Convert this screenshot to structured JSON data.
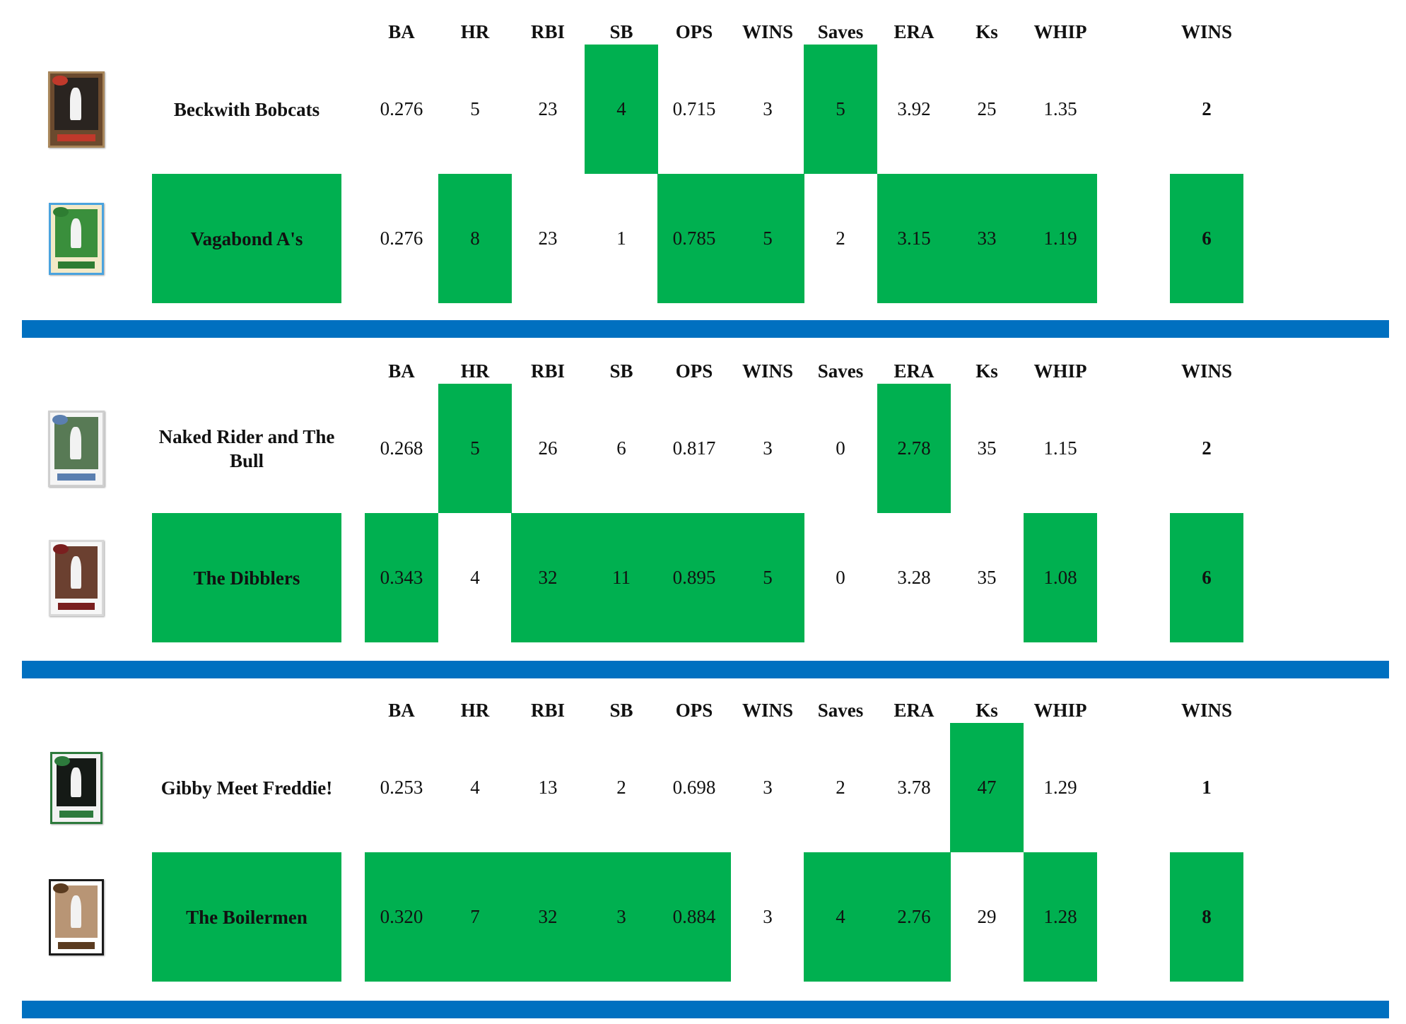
{
  "headers": [
    "BA",
    "HR",
    "RBI",
    "SB",
    "OPS",
    "WINS",
    "Saves",
    "ERA",
    "Ks",
    "WHIP",
    "WINS"
  ],
  "colors": {
    "win": "#00b050",
    "divider": "#0070c0"
  },
  "matchups": [
    {
      "teams": [
        {
          "name": "Beckwith Bobcats",
          "logo": "baseball-card-icon",
          "stats": [
            "0.276",
            "5",
            "23",
            "4",
            "0.715",
            "3",
            "5",
            "3.92",
            "25",
            "1.35"
          ],
          "wins": "2"
        },
        {
          "name": "Vagabond A's",
          "logo": "baseball-card-icon",
          "stats": [
            "0.276",
            "8",
            "23",
            "1",
            "0.785",
            "5",
            "2",
            "3.15",
            "33",
            "1.19"
          ],
          "wins": "6"
        }
      ]
    },
    {
      "teams": [
        {
          "name": "Naked Rider and The Bull",
          "logo": "baseball-card-icon",
          "stats": [
            "0.268",
            "5",
            "26",
            "6",
            "0.817",
            "3",
            "0",
            "2.78",
            "35",
            "1.15"
          ],
          "wins": "2"
        },
        {
          "name": "The Dibblers",
          "logo": "baseball-card-icon",
          "stats": [
            "0.343",
            "4",
            "32",
            "11",
            "0.895",
            "5",
            "0",
            "3.28",
            "35",
            "1.08"
          ],
          "wins": "6"
        }
      ]
    },
    {
      "teams": [
        {
          "name": "Gibby Meet Freddie!",
          "logo": "baseball-card-icon",
          "stats": [
            "0.253",
            "4",
            "13",
            "2",
            "0.698",
            "3",
            "2",
            "3.78",
            "47",
            "1.29"
          ],
          "wins": "1"
        },
        {
          "name": "The Boilermen",
          "logo": "baseball-card-icon",
          "stats": [
            "0.320",
            "7",
            "32",
            "3",
            "0.884",
            "3",
            "4",
            "2.76",
            "29",
            "1.28"
          ],
          "wins": "8"
        }
      ]
    }
  ]
}
